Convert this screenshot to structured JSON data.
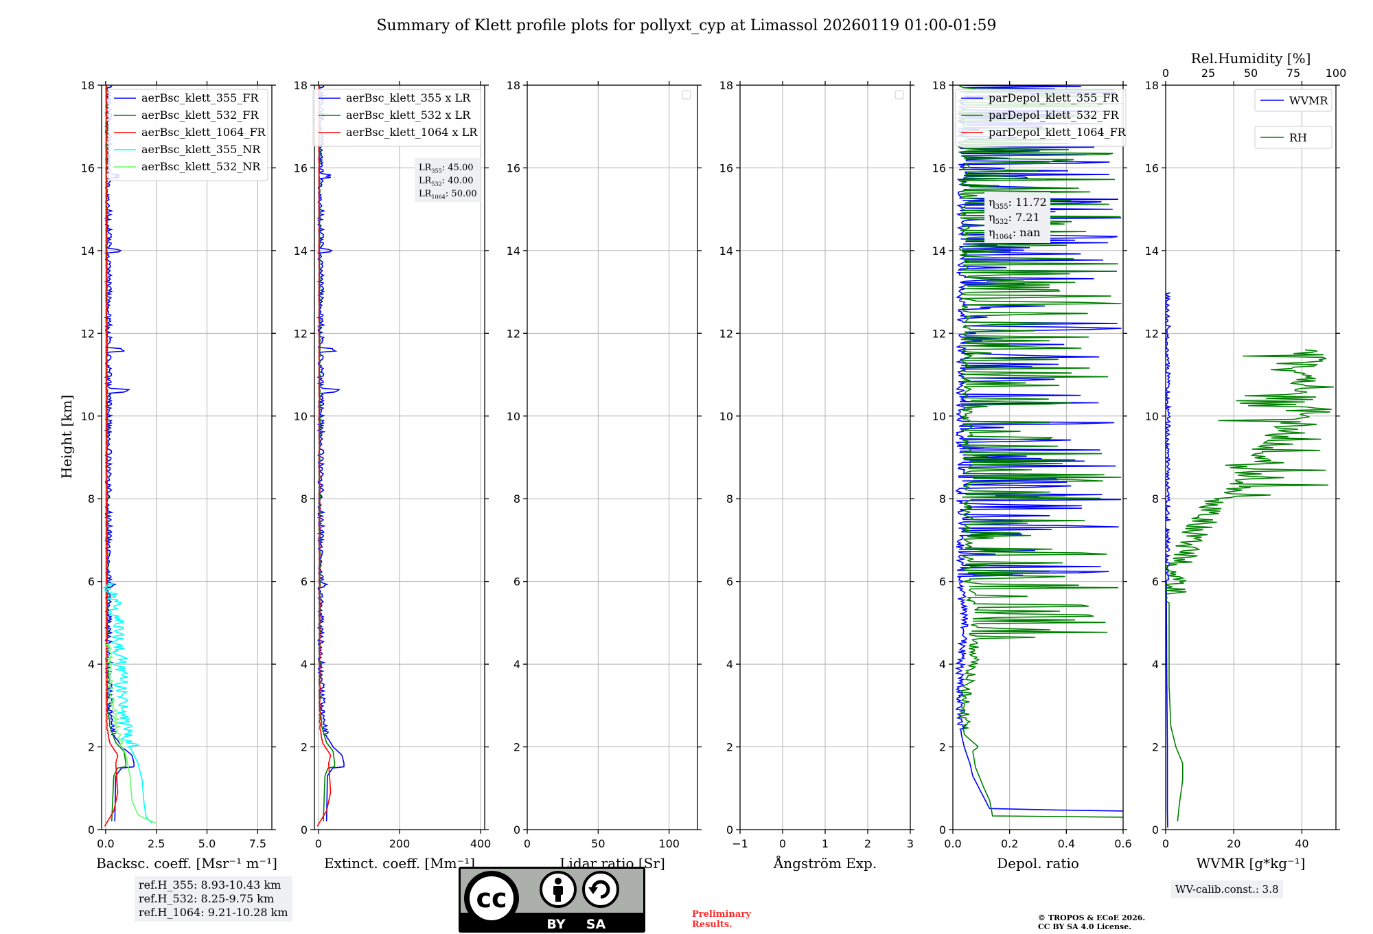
{
  "title": "Summary of Klett profile plots for pollyxt_cyp at Limassol 20260119 01:00-01:59",
  "colors": {
    "blue": "#0000ff",
    "green": "#008000",
    "red": "#ff0000",
    "cyan": "#00ffff",
    "lightgreen": "#66ff66",
    "grid": "#b0b0b0",
    "infobox": "#eef0f4",
    "preliminary": "#ff2a2a"
  },
  "chart_data": [
    {
      "type": "line",
      "id": "bsc",
      "xlabel": "Backsc. coeff. [Msr⁻¹ m⁻¹]",
      "ylabel": "Height [km]",
      "xlim": [
        -0.2,
        8.2
      ],
      "xticks": [
        0,
        2.5,
        5.0,
        7.5
      ],
      "xticklabels": [
        "0.0",
        "2.5",
        "5.0",
        "7.5"
      ],
      "ylim": [
        0,
        18
      ],
      "yticks": [
        0,
        2,
        4,
        6,
        8,
        10,
        12,
        14,
        16,
        18
      ],
      "legend": [
        "aerBsc_klett_355_FR",
        "aerBsc_klett_532_FR",
        "aerBsc_klett_1064_FR",
        "aerBsc_klett_355_NR",
        "aerBsc_klett_532_NR"
      ],
      "legend_colors": [
        "blue",
        "green",
        "red",
        "cyan",
        "lightgreen"
      ],
      "legend_position": "top-right",
      "series": [
        {
          "name": "aerBsc_klett_355_FR",
          "color": "blue",
          "profile": [
            [
              0.45,
              0.2
            ],
            [
              0.5,
              1.3
            ],
            [
              0.8,
              1.5
            ],
            [
              1.3,
              1.4
            ],
            [
              1.5,
              1.3
            ],
            [
              1.5,
              1.0
            ],
            [
              1.3,
              0.6
            ],
            [
              1.4,
              1.6
            ],
            [
              1.3,
              1.8
            ],
            [
              0.8,
              2.0
            ],
            [
              0.4,
              2.3
            ],
            [
              0.2,
              2.8
            ],
            [
              0.1,
              4.0
            ],
            [
              0.1,
              18
            ]
          ],
          "noise": {
            "start": 2.2,
            "amp": 0.15,
            "seed": 11
          },
          "spikes": [
            [
              10.6,
              0.9
            ],
            [
              11.6,
              0.7
            ],
            [
              14.0,
              0.5
            ],
            [
              15.8,
              0.4
            ],
            [
              5.9,
              0.3
            ]
          ]
        },
        {
          "name": "aerBsc_klett_532_FR",
          "color": "green",
          "profile": [
            [
              0.3,
              0.2
            ],
            [
              0.4,
              1.3
            ],
            [
              0.6,
              1.5
            ],
            [
              0.9,
              1.4
            ],
            [
              1.0,
              1.1
            ],
            [
              0.9,
              0.6
            ],
            [
              1.0,
              1.6
            ],
            [
              0.9,
              1.9
            ],
            [
              0.5,
              2.1
            ],
            [
              0.2,
              2.5
            ],
            [
              0.08,
              3.0
            ],
            [
              0.04,
              18
            ]
          ],
          "noise": {
            "start": 2.5,
            "amp": 0.04,
            "seed": 23
          }
        },
        {
          "name": "aerBsc_klett_1064_FR",
          "color": "red",
          "profile": [
            [
              -0.05,
              0.08
            ],
            [
              0.4,
              0.45
            ],
            [
              0.6,
              0.9
            ],
            [
              0.55,
              1.2
            ],
            [
              0.5,
              1.6
            ],
            [
              0.6,
              1.8
            ],
            [
              0.2,
              2.1
            ],
            [
              0.05,
              2.5
            ],
            [
              0.02,
              18
            ]
          ],
          "noise": {
            "start": 2.2,
            "amp": 0.02,
            "seed": 31
          }
        },
        {
          "name": "aerBsc_klett_355_NR",
          "color": "cyan",
          "profile": [
            [
              2.3,
              0.15
            ],
            [
              2.0,
              0.3
            ],
            [
              1.9,
              0.6
            ],
            [
              1.8,
              1.2
            ],
            [
              1.6,
              1.6
            ],
            [
              1.2,
              2.0
            ],
            [
              0.9,
              2.3
            ],
            [
              0.8,
              2.7
            ],
            [
              0.7,
              3.2
            ],
            [
              0.6,
              4.2
            ],
            [
              0.5,
              4.9
            ],
            [
              0.3,
              5.5
            ],
            [
              0.1,
              6.0
            ]
          ],
          "noise": {
            "start": 2.0,
            "amp": 0.35,
            "seed": 41
          }
        },
        {
          "name": "aerBsc_klett_532_NR",
          "color": "lightgreen",
          "profile": [
            [
              2.5,
              0.15
            ],
            [
              1.6,
              0.35
            ],
            [
              1.3,
              0.7
            ],
            [
              1.2,
              1.3
            ],
            [
              1.0,
              1.8
            ],
            [
              0.6,
              2.3
            ],
            [
              0.4,
              2.8
            ],
            [
              0.2,
              3.5
            ],
            [
              0.1,
              4.5
            ]
          ],
          "noise": {
            "start": 2.0,
            "amp": 0.15,
            "seed": 53
          }
        }
      ],
      "annotations": [
        "ref.H_355: 8.93-10.43 km",
        "ref.H_532: 8.25-9.75 km",
        "ref.H_1064: 9.21-10.28 km"
      ]
    },
    {
      "type": "line",
      "id": "ext",
      "xlabel": "Extinct. coeff. [Mm⁻¹]",
      "xlim": [
        -10,
        410
      ],
      "xticks": [
        0,
        200,
        400
      ],
      "xticklabels": [
        "0",
        "200",
        "400"
      ],
      "ylim": [
        0,
        18
      ],
      "yticks": [
        0,
        2,
        4,
        6,
        8,
        10,
        12,
        14,
        16,
        18
      ],
      "legend": [
        "aerBsc_klett_355 x LR",
        "aerBsc_klett_532 x LR",
        "aerBsc_klett_1064 x LR"
      ],
      "legend_colors": [
        "blue",
        "green",
        "red"
      ],
      "legend_position": "top-right",
      "lidar_ratios": [
        {
          "sub": "355",
          "value": "45.00"
        },
        {
          "sub": "532",
          "value": "40.00"
        },
        {
          "sub": "1064",
          "value": "50.00"
        }
      ],
      "series": [
        {
          "name": "aerBsc_klett_355 x LR",
          "color": "blue",
          "profile": [
            [
              20,
              0.2
            ],
            [
              22,
              1.3
            ],
            [
              36,
              1.5
            ],
            [
              60,
              1.4
            ],
            [
              68,
              1.3
            ],
            [
              68,
              1.0
            ],
            [
              58,
              0.6
            ],
            [
              63,
              1.6
            ],
            [
              58,
              1.8
            ],
            [
              36,
              2.0
            ],
            [
              18,
              2.3
            ],
            [
              9,
              2.8
            ],
            [
              4,
              4.0
            ],
            [
              4,
              18
            ]
          ],
          "noise": {
            "start": 2.2,
            "amp": 7,
            "seed": 11
          },
          "spikes": [
            [
              10.6,
              40
            ],
            [
              11.6,
              32
            ],
            [
              14.0,
              22
            ],
            [
              15.8,
              18
            ],
            [
              5.9,
              14
            ]
          ]
        },
        {
          "name": "aerBsc_klett_532 x LR",
          "color": "green",
          "profile": [
            [
              12,
              0.2
            ],
            [
              16,
              1.3
            ],
            [
              24,
              1.5
            ],
            [
              36,
              1.4
            ],
            [
              40,
              1.1
            ],
            [
              36,
              0.6
            ],
            [
              40,
              1.6
            ],
            [
              36,
              1.9
            ],
            [
              20,
              2.1
            ],
            [
              8,
              2.5
            ],
            [
              3,
              3.0
            ],
            [
              2,
              18
            ]
          ],
          "noise": {
            "start": 2.5,
            "amp": 1.6,
            "seed": 23
          }
        },
        {
          "name": "aerBsc_klett_1064 x LR",
          "color": "red",
          "profile": [
            [
              -3,
              0.08
            ],
            [
              20,
              0.45
            ],
            [
              30,
              0.9
            ],
            [
              28,
              1.2
            ],
            [
              25,
              1.6
            ],
            [
              30,
              1.8
            ],
            [
              10,
              2.1
            ],
            [
              3,
              2.5
            ],
            [
              1,
              18
            ]
          ],
          "noise": {
            "start": 2.2,
            "amp": 1,
            "seed": 31
          }
        }
      ]
    },
    {
      "type": "line",
      "id": "lr",
      "xlabel": "Lidar ratio [Sr]",
      "xlim": [
        0,
        120
      ],
      "xticks": [
        0,
        50,
        100
      ],
      "xticklabels": [
        "0",
        "50",
        "100"
      ],
      "ylim": [
        0,
        18
      ],
      "yticks": [
        0,
        2,
        4,
        6,
        8,
        10,
        12,
        14,
        16,
        18
      ],
      "legend_position": "top-right",
      "series": []
    },
    {
      "type": "line",
      "id": "ang",
      "xlabel": "Ångström Exp.",
      "xlim": [
        -1,
        3
      ],
      "xticks": [
        -1,
        0,
        1,
        2,
        3
      ],
      "xticklabels": [
        "−1",
        "0",
        "1",
        "2",
        "3"
      ],
      "ylim": [
        0,
        18
      ],
      "yticks": [
        0,
        2,
        4,
        6,
        8,
        10,
        12,
        14,
        16,
        18
      ],
      "legend_position": "top-right",
      "series": []
    },
    {
      "type": "line",
      "id": "depol",
      "xlabel": "Depol. ratio",
      "xlim": [
        0,
        0.6
      ],
      "xticks": [
        0,
        0.2,
        0.4,
        0.6
      ],
      "xticklabels": [
        "0.0",
        "0.2",
        "0.4",
        "0.6"
      ],
      "ylim": [
        0,
        18
      ],
      "yticks": [
        0,
        2,
        4,
        6,
        8,
        10,
        12,
        14,
        16,
        18
      ],
      "legend": [
        "parDepol_klett_355_FR",
        "parDepol_klett_532_FR",
        "parDepol_klett_1064_FR"
      ],
      "legend_colors": [
        "blue",
        "green",
        "red"
      ],
      "legend_position": "top-left",
      "eta": [
        {
          "sub": "355",
          "value": "11.72"
        },
        {
          "sub": "532",
          "value": "7.21"
        },
        {
          "sub": "1064",
          "value": "nan"
        }
      ],
      "series": [
        {
          "name": "parDepol_klett_355_FR",
          "color": "blue",
          "profile": [
            [
              0.6,
              0.45
            ],
            [
              0.13,
              0.5
            ],
            [
              0.1,
              0.9
            ],
            [
              0.07,
              1.3
            ],
            [
              0.06,
              1.6
            ],
            [
              0.04,
              2.0
            ],
            [
              0.03,
              2.3
            ],
            [
              0.02,
              3.0
            ],
            [
              0.02,
              4.0
            ],
            [
              0.04,
              5.0
            ],
            [
              0.02,
              6.0
            ],
            [
              0.03,
              18
            ]
          ],
          "noise": {
            "start": 2.4,
            "amp": 0.015,
            "seed": 61
          },
          "bursts": {
            "start": 6.0,
            "end": 18,
            "count": 110,
            "min": 0.05,
            "max": 0.6,
            "seed": 67
          }
        },
        {
          "name": "parDepol_klett_532_FR",
          "color": "green",
          "profile": [
            [
              0.6,
              0.3
            ],
            [
              0.14,
              0.32
            ],
            [
              0.13,
              0.7
            ],
            [
              0.11,
              1.0
            ],
            [
              0.08,
              1.5
            ],
            [
              0.07,
              1.9
            ],
            [
              0.09,
              2.0
            ],
            [
              0.04,
              2.3
            ],
            [
              0.03,
              3.0
            ],
            [
              0.05,
              3.6
            ],
            [
              0.07,
              4.2
            ],
            [
              0.07,
              5.0
            ],
            [
              0.05,
              6.0
            ],
            [
              0.03,
              18
            ]
          ],
          "noise": {
            "start": 2.4,
            "amp": 0.02,
            "seed": 71
          },
          "bursts": {
            "start": 4.6,
            "end": 18,
            "count": 150,
            "min": 0.03,
            "max": 0.6,
            "seed": 79
          }
        }
      ]
    },
    {
      "type": "line",
      "id": "wv",
      "xlabel": "WVMR [g*kg⁻¹]",
      "xlim": [
        0,
        50
      ],
      "xticks": [
        0,
        20,
        40
      ],
      "xticklabels": [
        "0",
        "20",
        "40"
      ],
      "ylim": [
        0,
        18
      ],
      "yticks": [
        0,
        2,
        4,
        6,
        8,
        10,
        12,
        14,
        16,
        18
      ],
      "top_axis": {
        "label": "Rel.Humidity [%]",
        "lim": [
          0,
          100
        ],
        "ticks": [
          0,
          25,
          50,
          75,
          100
        ]
      },
      "legend": [
        "WVMR",
        "RH"
      ],
      "legend_colors": [
        "blue",
        "green"
      ],
      "legend_position": "top-right",
      "calib_text": "WV-calib.const.: 3.8",
      "series": [
        {
          "name": "WVMR",
          "color": "blue",
          "profile": [
            [
              0.6,
              0.05
            ],
            [
              0.5,
              0.5
            ],
            [
              0.5,
              2.0
            ],
            [
              0.3,
              4.0
            ],
            [
              0.2,
              6.0
            ],
            [
              0.3,
              10.0
            ],
            [
              0.3,
              13.0
            ]
          ],
          "noise": {
            "start": 6.0,
            "amp": 0.8,
            "seed": 83
          },
          "bursts": {
            "start": 13.0,
            "end": 17.6,
            "count": 30,
            "min": 0.5,
            "max": 3,
            "seed": 89
          }
        },
        {
          "name": "RH",
          "color": "green",
          "axis": "top",
          "profile": [
            [
              7,
              0.2
            ],
            [
              8,
              0.6
            ],
            [
              10,
              1.2
            ],
            [
              10,
              1.6
            ],
            [
              6,
              2.0
            ],
            [
              3,
              2.5
            ],
            [
              2,
              3.5
            ],
            [
              2,
              4.5
            ],
            [
              2,
              5.5
            ],
            [
              5,
              6.2
            ],
            [
              12,
              7.0
            ],
            [
              22,
              7.6
            ],
            [
              27,
              8.0
            ],
            [
              45,
              8.6
            ],
            [
              60,
              9.4
            ],
            [
              75,
              10.0
            ],
            [
              80,
              10.5
            ],
            [
              80,
              11.0
            ],
            [
              85,
              11.6
            ]
          ],
          "noise": {
            "start": 5.5,
            "amp": 9,
            "seed": 97
          },
          "bursts": {
            "start": 8.0,
            "end": 12.9,
            "count": 60,
            "min": 30,
            "max": 100,
            "seed": 101
          }
        }
      ]
    }
  ],
  "footer": {
    "preliminary": [
      "Preliminary",
      "Results."
    ],
    "copyright": [
      "© TROPOS & ECoE 2026.",
      "CC BY SA 4.0 License."
    ],
    "cc_badge": {
      "main": "cc",
      "by": "BY",
      "sa": "SA"
    }
  }
}
